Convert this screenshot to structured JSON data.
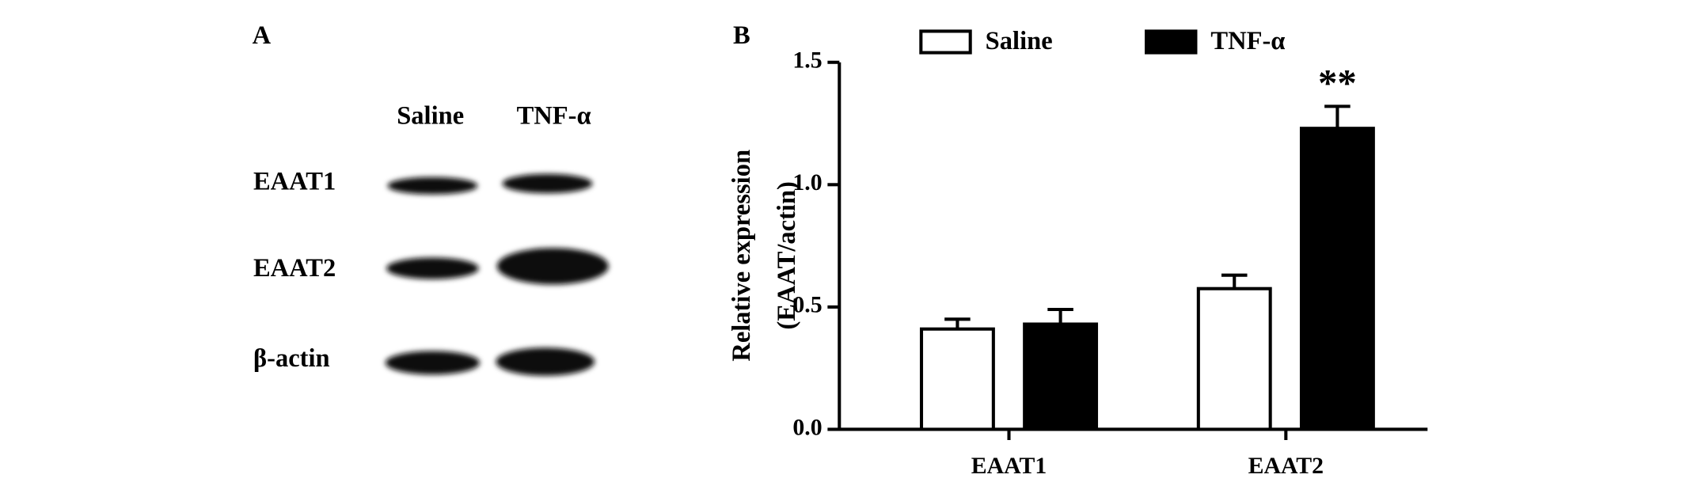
{
  "panel_a": {
    "panel_label": "A",
    "lanes": [
      "Saline",
      "TNF-α"
    ],
    "rows": [
      "EAAT1",
      "EAAT2",
      "β-actin"
    ]
  },
  "chart_data": {
    "type": "bar",
    "panel_label": "B",
    "ylabel": [
      "Relative expression",
      "(EAAT/actin)"
    ],
    "categories": [
      "EAAT1",
      "EAAT2"
    ],
    "series": [
      {
        "name": "Saline",
        "color": "#ffffff",
        "values": [
          0.41,
          0.575
        ],
        "errors": [
          0.04,
          0.055
        ]
      },
      {
        "name": "TNF-α",
        "color": "#000000",
        "values": [
          0.43,
          1.23
        ],
        "errors": [
          0.06,
          0.09
        ]
      }
    ],
    "annotations": [
      {
        "text": "**",
        "series": 1,
        "category": 1
      }
    ],
    "ylim": [
      0,
      1.5
    ],
    "yticks": [
      {
        "value": 0,
        "label": "0.0"
      },
      0.5,
      {
        "value": 1,
        "label": "1.0"
      },
      1.5
    ],
    "legend": "top"
  }
}
